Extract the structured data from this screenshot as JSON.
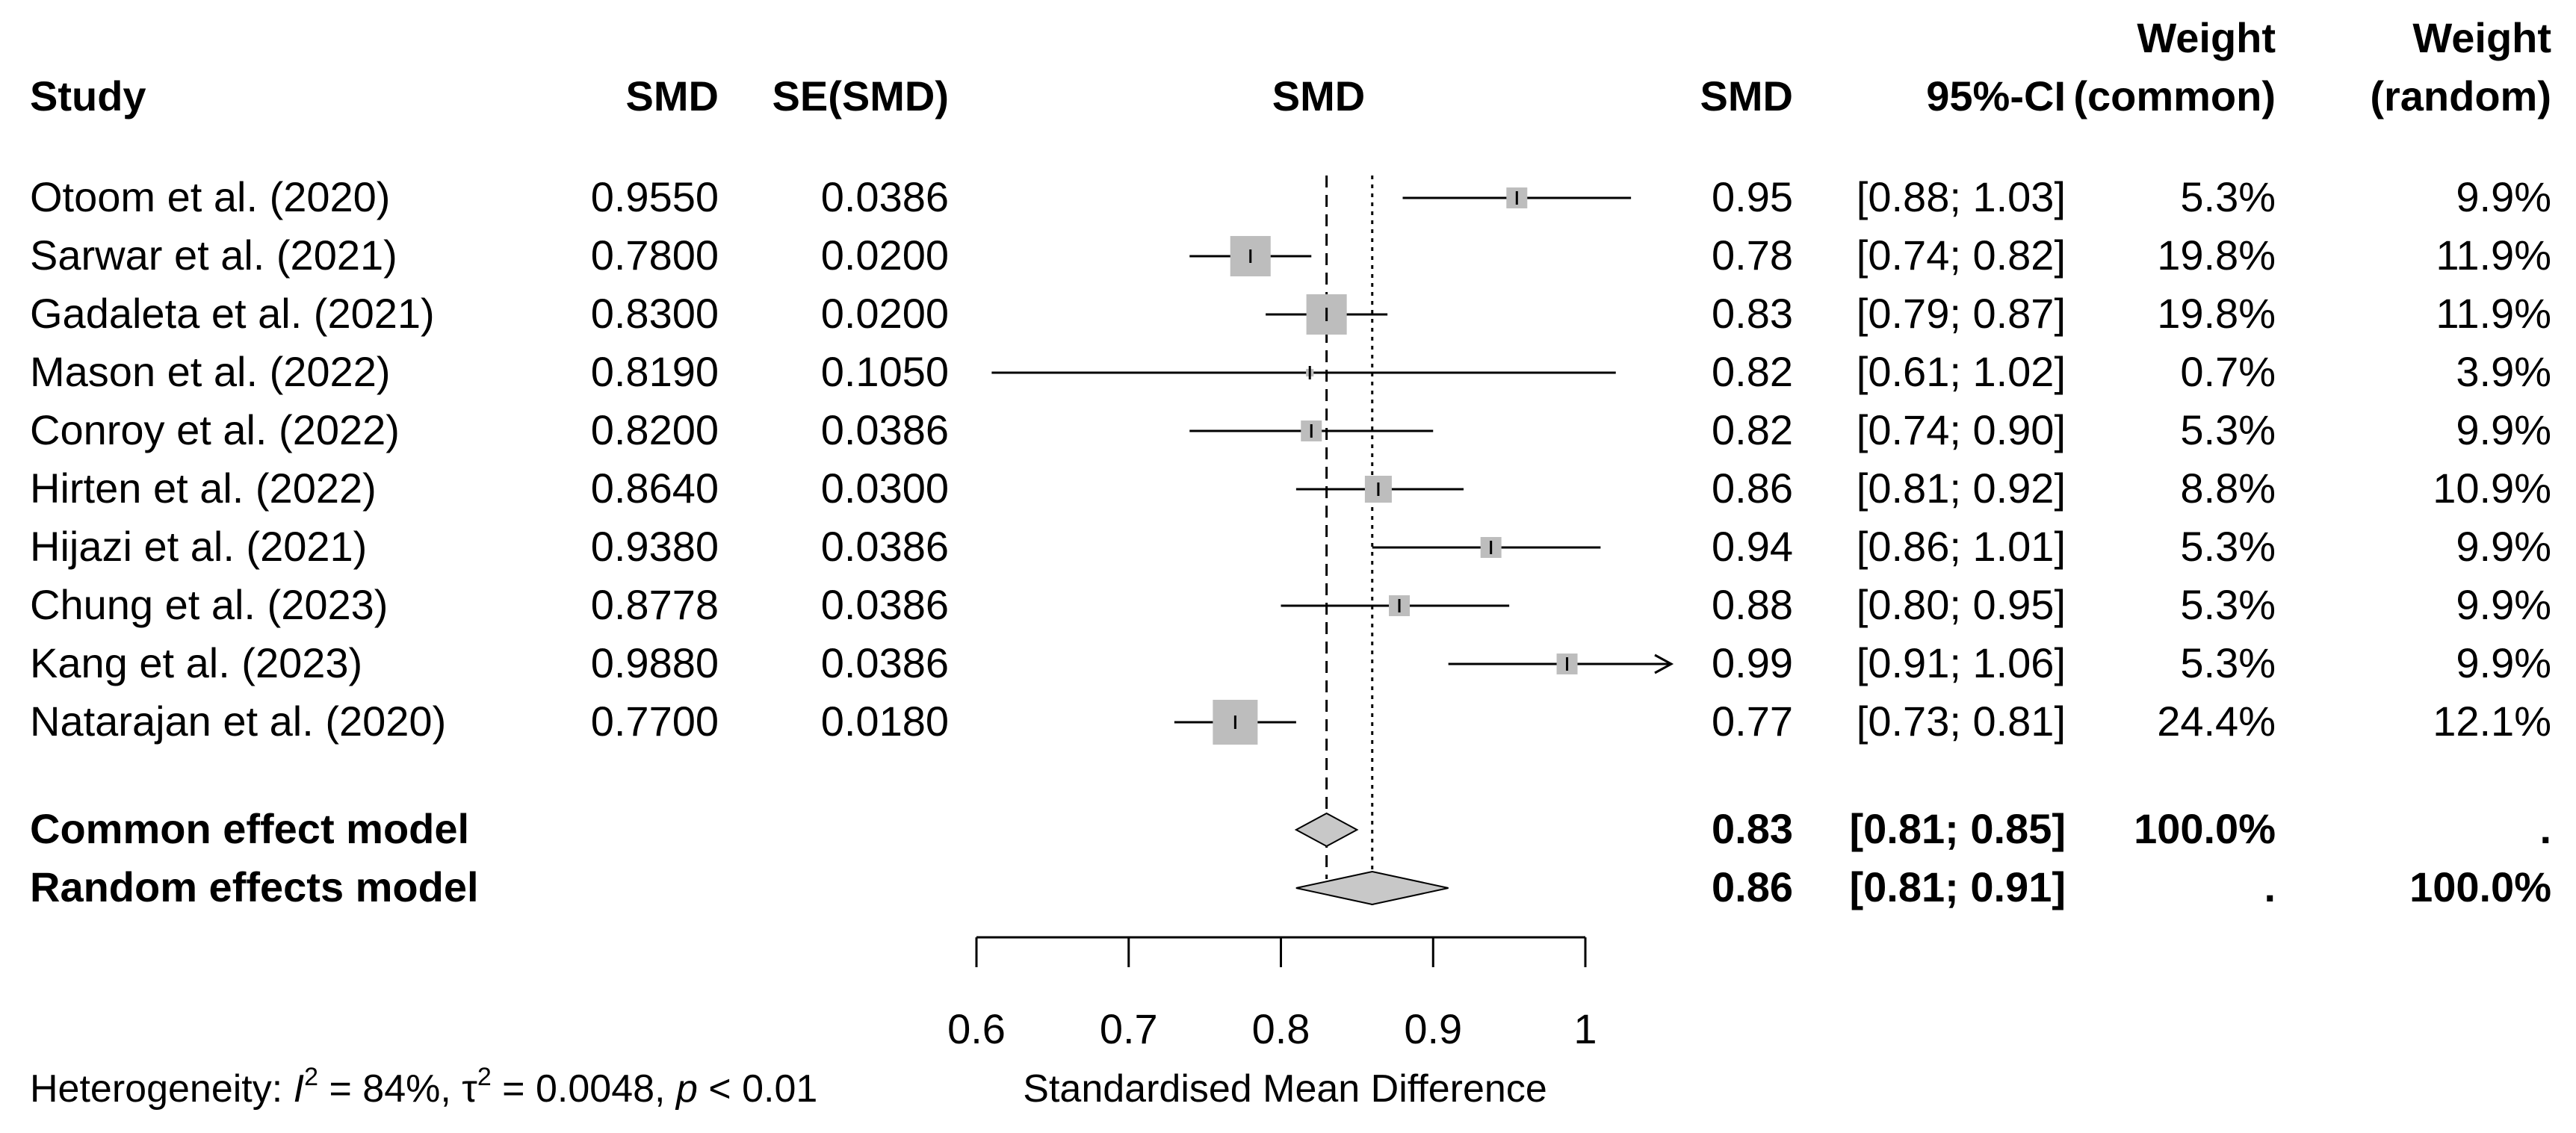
{
  "chart_data": {
    "type": "forest",
    "xlabel": "Standardised Mean Difference",
    "xlim": [
      0.6,
      1.0
    ],
    "x_ticks": [
      "0.6",
      "0.7",
      "0.8",
      "0.9",
      "1"
    ],
    "x_tick_values": [
      0.6,
      0.7,
      0.8,
      0.9,
      1.0
    ],
    "common_effect_line": 0.83,
    "random_effect_line": 0.86,
    "headers": {
      "study": "Study",
      "smd": "SMD",
      "se": "SE(SMD)",
      "plot": "SMD",
      "smd2": "SMD",
      "ci": "95%-CI",
      "w_common_1": "Weight",
      "w_common_2": "(common)",
      "w_random_1": "Weight",
      "w_random_2": "(random)"
    },
    "studies": [
      {
        "name": "Otoom et al. (2020)",
        "smd": "0.9550",
        "se": "0.0386",
        "est": "0.95",
        "ci": "[0.88; 1.03]",
        "wc": "5.3%",
        "wr": "9.9%",
        "value": 0.955,
        "lower": 0.88,
        "upper": 1.03,
        "weight": 5.3,
        "arrow": false
      },
      {
        "name": "Sarwar et al. (2021)",
        "smd": "0.7800",
        "se": "0.0200",
        "est": "0.78",
        "ci": "[0.74; 0.82]",
        "wc": "19.8%",
        "wr": "11.9%",
        "value": 0.78,
        "lower": 0.74,
        "upper": 0.82,
        "weight": 19.8,
        "arrow": false
      },
      {
        "name": "Gadaleta et al. (2021)",
        "smd": "0.8300",
        "se": "0.0200",
        "est": "0.83",
        "ci": "[0.79; 0.87]",
        "wc": "19.8%",
        "wr": "11.9%",
        "value": 0.83,
        "lower": 0.79,
        "upper": 0.87,
        "weight": 19.8,
        "arrow": false
      },
      {
        "name": "Mason et al. (2022)",
        "smd": "0.8190",
        "se": "0.1050",
        "est": "0.82",
        "ci": "[0.61; 1.02]",
        "wc": "0.7%",
        "wr": "3.9%",
        "value": 0.819,
        "lower": 0.61,
        "upper": 1.02,
        "weight": 0.7,
        "arrow": false
      },
      {
        "name": "Conroy et al. (2022)",
        "smd": "0.8200",
        "se": "0.0386",
        "est": "0.82",
        "ci": "[0.74; 0.90]",
        "wc": "5.3%",
        "wr": "9.9%",
        "value": 0.82,
        "lower": 0.74,
        "upper": 0.9,
        "weight": 5.3,
        "arrow": false
      },
      {
        "name": "Hirten et al. (2022)",
        "smd": "0.8640",
        "se": "0.0300",
        "est": "0.86",
        "ci": "[0.81; 0.92]",
        "wc": "8.8%",
        "wr": "10.9%",
        "value": 0.864,
        "lower": 0.81,
        "upper": 0.92,
        "weight": 8.8,
        "arrow": false
      },
      {
        "name": "Hijazi et al. (2021)",
        "smd": "0.9380",
        "se": "0.0386",
        "est": "0.94",
        "ci": "[0.86; 1.01]",
        "wc": "5.3%",
        "wr": "9.9%",
        "value": 0.938,
        "lower": 0.86,
        "upper": 1.01,
        "weight": 5.3,
        "arrow": false
      },
      {
        "name": "Chung et al. (2023)",
        "smd": "0.8778",
        "se": "0.0386",
        "est": "0.88",
        "ci": "[0.80; 0.95]",
        "wc": "5.3%",
        "wr": "9.9%",
        "value": 0.8778,
        "lower": 0.8,
        "upper": 0.95,
        "weight": 5.3,
        "arrow": false
      },
      {
        "name": "Kang et al. (2023)",
        "smd": "0.9880",
        "se": "0.0386",
        "est": "0.99",
        "ci": "[0.91; 1.06]",
        "wc": "5.3%",
        "wr": "9.9%",
        "value": 0.988,
        "lower": 0.91,
        "upper": 1.06,
        "weight": 5.3,
        "arrow": true
      },
      {
        "name": "Natarajan et al. (2020)",
        "smd": "0.7700",
        "se": "0.0180",
        "est": "0.77",
        "ci": "[0.73; 0.81]",
        "wc": "24.4%",
        "wr": "12.1%",
        "value": 0.77,
        "lower": 0.73,
        "upper": 0.81,
        "weight": 24.4,
        "arrow": false
      }
    ],
    "summaries": [
      {
        "name": "Common effect model",
        "est": "0.83",
        "ci": "[0.81; 0.85]",
        "wc": "100.0%",
        "wr": ".",
        "value": 0.83,
        "lower": 0.81,
        "upper": 0.85
      },
      {
        "name": "Random effects model",
        "est": "0.86",
        "ci": "[0.81; 0.91]",
        "wc": ".",
        "wr": "100.0%",
        "value": 0.86,
        "lower": 0.81,
        "upper": 0.91
      }
    ],
    "heterogeneity": {
      "prefix": "Heterogeneity: ",
      "i2_symbol": "I",
      "i2_sup": "2",
      "i2_value": " = 84%, ",
      "tau_symbol": "τ",
      "tau_sup": "2",
      "tau_value": " = 0.0048, ",
      "p_symbol": "p",
      "p_value": " < 0.01"
    },
    "colors": {
      "box": "#bdbdbd",
      "diamond": "#c8c8c8",
      "line": "#000000"
    }
  }
}
